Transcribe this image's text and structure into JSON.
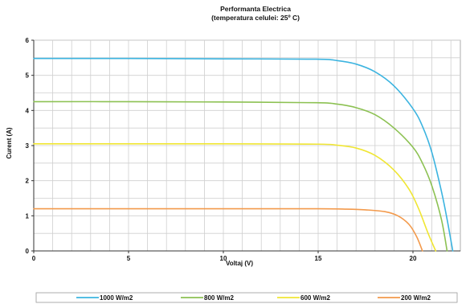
{
  "chart_data": {
    "type": "line",
    "title": "Performanta Electrica",
    "subtitle": "(temperatura celulei: 25º C)",
    "xlabel": "Voltaj (V)",
    "ylabel": "Curent (A)",
    "xlim": [
      0,
      22.5
    ],
    "ylim": [
      0,
      6
    ],
    "x_ticks": [
      0,
      5,
      10,
      15,
      20
    ],
    "y_ticks": [
      0,
      1,
      2,
      3,
      4,
      5,
      6
    ],
    "x_tick_labels": [
      "0",
      "5",
      "10",
      "15",
      "20"
    ],
    "y_tick_labels": [
      "0",
      "1",
      "2",
      "3",
      "4",
      "5",
      "6"
    ],
    "grid": true,
    "legend_position": "bottom",
    "series": [
      {
        "name": "1000 W/m2",
        "color": "#3cb4e0",
        "x": [
          0,
          5,
          10,
          14.9,
          16,
          17,
          18,
          19,
          20,
          20.5,
          21,
          21.5,
          21.8,
          22.1
        ],
        "y": [
          5.48,
          5.48,
          5.47,
          5.46,
          5.42,
          5.32,
          5.1,
          4.7,
          4.05,
          3.55,
          2.8,
          1.7,
          0.9,
          0
        ]
      },
      {
        "name": "800 W/m2",
        "color": "#8cc152",
        "x": [
          0,
          5,
          10,
          14.9,
          16,
          17,
          18,
          19,
          20,
          20.5,
          21,
          21.5,
          21.8
        ],
        "y": [
          4.25,
          4.25,
          4.24,
          4.22,
          4.18,
          4.08,
          3.88,
          3.5,
          2.95,
          2.5,
          1.85,
          0.9,
          0
        ]
      },
      {
        "name": "600 W/m2",
        "color": "#f0e634",
        "x": [
          0,
          5,
          10,
          15,
          16,
          17,
          18,
          19,
          19.8,
          20.3,
          20.8,
          21.2
        ],
        "y": [
          3.05,
          3.05,
          3.05,
          3.04,
          3.01,
          2.93,
          2.72,
          2.3,
          1.75,
          1.2,
          0.5,
          0
        ]
      },
      {
        "name": "200 W/m2",
        "color": "#f39a4c",
        "x": [
          0,
          5,
          10,
          15,
          16.5,
          17.5,
          18.5,
          19.2,
          19.8,
          20.2,
          20.5
        ],
        "y": [
          1.2,
          1.2,
          1.2,
          1.2,
          1.19,
          1.17,
          1.12,
          1.0,
          0.75,
          0.4,
          0
        ]
      }
    ]
  }
}
